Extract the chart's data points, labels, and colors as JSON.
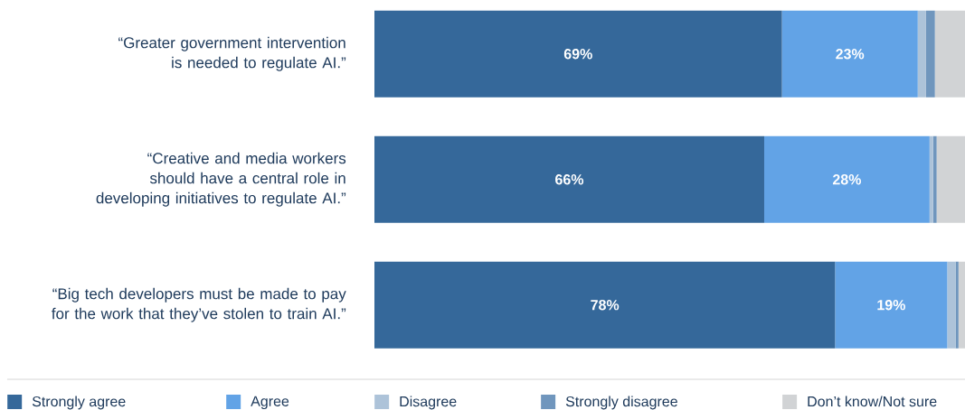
{
  "chart_data": {
    "type": "bar",
    "orientation": "horizontal",
    "stacked": true,
    "categories": [
      "“Greater government intervention is needed to regulate AI.”",
      "“Creative and media workers should have a central role in developing initiatives to regulate AI.”",
      "“Big tech developers must be made to pay for the work that they’ve stolen to train AI.”"
    ],
    "series": [
      {
        "name": "Strongly agree",
        "color": "#35689a",
        "values": [
          69,
          66,
          78
        ],
        "value_labels": [
          "69%",
          "66%",
          "78%"
        ]
      },
      {
        "name": "Agree",
        "color": "#62a3e6",
        "values": [
          23,
          28,
          19
        ],
        "value_labels": [
          "23%",
          "28%",
          "19%"
        ]
      },
      {
        "name": "Disagree",
        "color": "#adc3d9",
        "values": [
          1.4,
          0.6,
          1.4
        ]
      },
      {
        "name": "Strongly disagree",
        "color": "#7096bd",
        "values": [
          1.5,
          0.6,
          0.5
        ]
      },
      {
        "name": "Don’t know/Not sure",
        "color": "#d1d3d5",
        "values": [
          5.1,
          4.8,
          1.1
        ]
      }
    ],
    "legend": "bottom"
  }
}
